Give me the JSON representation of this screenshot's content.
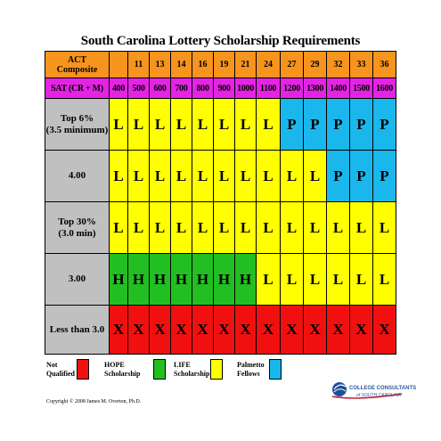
{
  "title": "South Carolina Lottery Scholarship Requirements",
  "table": {
    "act_header": [
      "ACT",
      "Composite"
    ],
    "act_values": [
      "11",
      "13",
      "14",
      "16",
      "19",
      "21",
      "24",
      "27",
      "29",
      "32",
      "33",
      "36"
    ],
    "sat_header": "SAT (CR + M)",
    "sat_values": [
      "400",
      "500",
      "600",
      "700",
      "800",
      "900",
      "1000",
      "1100",
      "1200",
      "1300",
      "1400",
      "1500",
      "1600"
    ],
    "rows": [
      {
        "label": [
          "Top 6%",
          "(3.5 minimum)"
        ],
        "cells": [
          "L",
          "L",
          "L",
          "L",
          "L",
          "L",
          "L",
          "L",
          "P",
          "P",
          "P",
          "P",
          "P"
        ]
      },
      {
        "label": [
          "4.00"
        ],
        "cells": [
          "L",
          "L",
          "L",
          "L",
          "L",
          "L",
          "L",
          "L",
          "L",
          "L",
          "P",
          "P",
          "P"
        ]
      },
      {
        "label": [
          "Top 30%",
          "(3.0 min)"
        ],
        "cells": [
          "L",
          "L",
          "L",
          "L",
          "L",
          "L",
          "L",
          "L",
          "L",
          "L",
          "L",
          "L",
          "L"
        ]
      },
      {
        "label": [
          "3.00"
        ],
        "cells": [
          "H",
          "H",
          "H",
          "H",
          "H",
          "H",
          "H",
          "L",
          "L",
          "L",
          "L",
          "L",
          "L"
        ]
      },
      {
        "label": [
          "Less than 3.0"
        ],
        "cells": [
          "X",
          "X",
          "X",
          "X",
          "X",
          "X",
          "X",
          "X",
          "X",
          "X",
          "X",
          "X",
          "X"
        ]
      }
    ]
  },
  "legend": [
    {
      "lines": [
        "Not",
        "Qualified"
      ],
      "code": "X",
      "color": "#f01010"
    },
    {
      "lines": [
        "HOPE",
        "Scholarship"
      ],
      "code": "H",
      "color": "#22bf22"
    },
    {
      "lines": [
        "LIFE",
        "Scholarship"
      ],
      "code": "L",
      "color": "#ffff00"
    },
    {
      "lines": [
        "Palmetto",
        "Fellows"
      ],
      "code": "P",
      "color": "#1ab7ec"
    }
  ],
  "copyright": "Copyright © 2008 James M. Overton, Ph.D.",
  "logo": {
    "icon": "globe-logo-icon",
    "name": "COLLEGE CONSULTANTS",
    "sub": "of SOUTH CAROLINA"
  }
}
